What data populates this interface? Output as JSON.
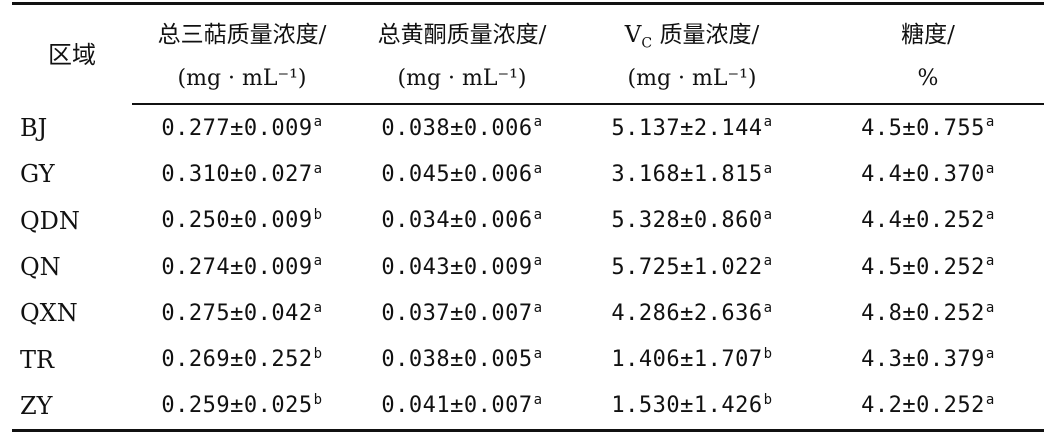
{
  "headers": {
    "region": "区域",
    "triterpene": {
      "line1": "总三萜质量浓度/",
      "unit": "(mg · mL⁻¹)"
    },
    "flavone": {
      "line1": "总黄酮质量浓度/",
      "unit": "(mg · mL⁻¹)"
    },
    "vc": {
      "v": "V",
      "sub": "C",
      "rest": " 质量浓度/",
      "unit": "(mg · mL⁻¹)"
    },
    "sugar": {
      "line1": "糖度/",
      "unit": "%"
    }
  },
  "rows": [
    {
      "region": "BJ",
      "triterpene": {
        "v": "0.277±0.009",
        "s": "a"
      },
      "flavone": {
        "v": "0.038±0.006",
        "s": "a"
      },
      "vc": {
        "v": "5.137±2.144",
        "s": "a"
      },
      "sugar": {
        "v": "4.5±0.755",
        "s": "a"
      }
    },
    {
      "region": "GY",
      "triterpene": {
        "v": "0.310±0.027",
        "s": "a"
      },
      "flavone": {
        "v": "0.045±0.006",
        "s": "a"
      },
      "vc": {
        "v": "3.168±1.815",
        "s": "a"
      },
      "sugar": {
        "v": "4.4±0.370",
        "s": "a"
      }
    },
    {
      "region": "QDN",
      "triterpene": {
        "v": "0.250±0.009",
        "s": "b"
      },
      "flavone": {
        "v": "0.034±0.006",
        "s": "a"
      },
      "vc": {
        "v": "5.328±0.860",
        "s": "a"
      },
      "sugar": {
        "v": "4.4±0.252",
        "s": "a"
      }
    },
    {
      "region": "QN",
      "triterpene": {
        "v": "0.274±0.009",
        "s": "a"
      },
      "flavone": {
        "v": "0.043±0.009",
        "s": "a"
      },
      "vc": {
        "v": "5.725±1.022",
        "s": "a"
      },
      "sugar": {
        "v": "4.5±0.252",
        "s": "a"
      }
    },
    {
      "region": "QXN",
      "triterpene": {
        "v": "0.275±0.042",
        "s": "a"
      },
      "flavone": {
        "v": "0.037±0.007",
        "s": "a"
      },
      "vc": {
        "v": "4.286±2.636",
        "s": "a"
      },
      "sugar": {
        "v": "4.8±0.252",
        "s": "a"
      }
    },
    {
      "region": "TR",
      "triterpene": {
        "v": "0.269±0.252",
        "s": "b"
      },
      "flavone": {
        "v": "0.038±0.005",
        "s": "a"
      },
      "vc": {
        "v": "1.406±1.707",
        "s": "b"
      },
      "sugar": {
        "v": "4.3±0.379",
        "s": "a"
      }
    },
    {
      "region": "ZY",
      "triterpene": {
        "v": "0.259±0.025",
        "s": "b"
      },
      "flavone": {
        "v": "0.041±0.007",
        "s": "a"
      },
      "vc": {
        "v": "1.530±1.426",
        "s": "b"
      },
      "sugar": {
        "v": "4.2±0.252",
        "s": "a"
      }
    }
  ]
}
